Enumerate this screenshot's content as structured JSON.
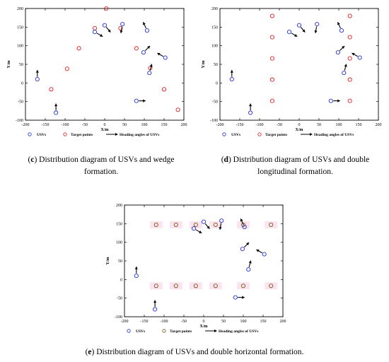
{
  "colors": {
    "usv": "#1f2fd6",
    "target": "#e01e1e",
    "target_double_horizontal": "#7a5a1a",
    "arrow": "#000000",
    "highlight": "#fbe3ef"
  },
  "chart_data": [
    {
      "type": "scatter",
      "panel_label": "c",
      "caption": "Distribution diagram of USVs and wedge formation.",
      "xlabel": "X/m",
      "ylabel": "Y/m",
      "xlim": [
        -200,
        200
      ],
      "ylim": [
        -100,
        200
      ],
      "xticks": [
        -200,
        -150,
        -100,
        -50,
        0,
        50,
        100,
        150,
        200
      ],
      "yticks": [
        -100,
        -50,
        0,
        50,
        100,
        150,
        200
      ],
      "grid": false,
      "legend": {
        "placement": "bottom",
        "usvs": "USVs",
        "targets": "Target points",
        "heading": "Heading angles of USVs"
      },
      "usvs": [
        {
          "x": -170,
          "y": 10,
          "heading": 90
        },
        {
          "x": -123,
          "y": -80,
          "heading": 90
        },
        {
          "x": -25,
          "y": 137,
          "heading": -30
        },
        {
          "x": 0,
          "y": 155,
          "heading": -50
        },
        {
          "x": 45,
          "y": 158,
          "heading": -100
        },
        {
          "x": 80,
          "y": -48,
          "heading": 0
        },
        {
          "x": 98,
          "y": 82,
          "heading": 45
        },
        {
          "x": 107,
          "y": 141,
          "heading": 115
        },
        {
          "x": 113,
          "y": 27,
          "heading": 75
        },
        {
          "x": 153,
          "y": 68,
          "heading": 150
        }
      ],
      "targets": [
        {
          "x": 4,
          "y": 200
        },
        {
          "x": -25,
          "y": 147
        },
        {
          "x": 40,
          "y": 147
        },
        {
          "x": -65,
          "y": 93
        },
        {
          "x": 80,
          "y": 93
        },
        {
          "x": -95,
          "y": 38
        },
        {
          "x": 115,
          "y": 40
        },
        {
          "x": -135,
          "y": -17
        },
        {
          "x": 150,
          "y": -17
        },
        {
          "x": 185,
          "y": -72
        }
      ]
    },
    {
      "type": "scatter",
      "panel_label": "d",
      "caption": "Distribution diagram of USVs and double longitudinal formation.",
      "xlabel": "X/m",
      "ylabel": "Y/m",
      "xlim": [
        -200,
        200
      ],
      "ylim": [
        -100,
        200
      ],
      "xticks": [
        -200,
        -150,
        -100,
        -50,
        0,
        50,
        100,
        150,
        200
      ],
      "yticks": [
        -100,
        -50,
        0,
        50,
        100,
        150,
        200
      ],
      "grid": false,
      "legend": {
        "placement": "bottom",
        "usvs": "USVs",
        "targets": "Target points",
        "heading": "Heading angles of USVs"
      },
      "usvs": [
        {
          "x": -170,
          "y": 10,
          "heading": 90
        },
        {
          "x": -123,
          "y": -80,
          "heading": 90
        },
        {
          "x": -25,
          "y": 137,
          "heading": -30
        },
        {
          "x": 0,
          "y": 155,
          "heading": -50
        },
        {
          "x": 45,
          "y": 158,
          "heading": -100
        },
        {
          "x": 80,
          "y": -48,
          "heading": 0
        },
        {
          "x": 98,
          "y": 82,
          "heading": 45
        },
        {
          "x": 107,
          "y": 141,
          "heading": 115
        },
        {
          "x": 113,
          "y": 27,
          "heading": 75
        },
        {
          "x": 153,
          "y": 68,
          "heading": 150
        }
      ],
      "targets": [
        {
          "x": -68,
          "y": 180
        },
        {
          "x": -68,
          "y": 123
        },
        {
          "x": -68,
          "y": 66
        },
        {
          "x": -68,
          "y": 9
        },
        {
          "x": -68,
          "y": -48
        },
        {
          "x": 128,
          "y": 180
        },
        {
          "x": 128,
          "y": 123
        },
        {
          "x": 128,
          "y": 66
        },
        {
          "x": 128,
          "y": 9
        },
        {
          "x": 128,
          "y": -48
        }
      ]
    },
    {
      "type": "scatter",
      "panel_label": "e",
      "caption": "Distribution diagram of USVs and double horizontal formation.",
      "xlabel": "X/m",
      "ylabel": "Y/m",
      "xlim": [
        -200,
        200
      ],
      "ylim": [
        -100,
        200
      ],
      "xticks": [
        -200,
        -150,
        -100,
        -50,
        0,
        50,
        100,
        150,
        200
      ],
      "yticks": [
        -100,
        -50,
        0,
        50,
        100,
        150,
        200
      ],
      "grid": false,
      "legend": {
        "placement": "bottom",
        "usvs": "USVs",
        "targets": "Target points",
        "heading": "Heading angles of USVs"
      },
      "usvs": [
        {
          "x": -170,
          "y": 10,
          "heading": 90
        },
        {
          "x": -123,
          "y": -80,
          "heading": 90
        },
        {
          "x": -25,
          "y": 137,
          "heading": -30
        },
        {
          "x": 0,
          "y": 155,
          "heading": -50
        },
        {
          "x": 45,
          "y": 158,
          "heading": -100
        },
        {
          "x": 80,
          "y": -48,
          "heading": 0
        },
        {
          "x": 98,
          "y": 82,
          "heading": 45
        },
        {
          "x": 103,
          "y": 141,
          "heading": 115
        },
        {
          "x": 113,
          "y": 27,
          "heading": 75
        },
        {
          "x": 153,
          "y": 68,
          "heading": 150
        }
      ],
      "targets": [
        {
          "x": -120,
          "y": 147
        },
        {
          "x": -70,
          "y": 147
        },
        {
          "x": -20,
          "y": 147
        },
        {
          "x": 30,
          "y": 147
        },
        {
          "x": 100,
          "y": 147
        },
        {
          "x": 170,
          "y": 147
        },
        {
          "x": -120,
          "y": -17
        },
        {
          "x": -70,
          "y": -17
        },
        {
          "x": -20,
          "y": -17
        },
        {
          "x": 30,
          "y": -17
        },
        {
          "x": 100,
          "y": -17
        },
        {
          "x": 170,
          "y": -17
        }
      ]
    }
  ]
}
